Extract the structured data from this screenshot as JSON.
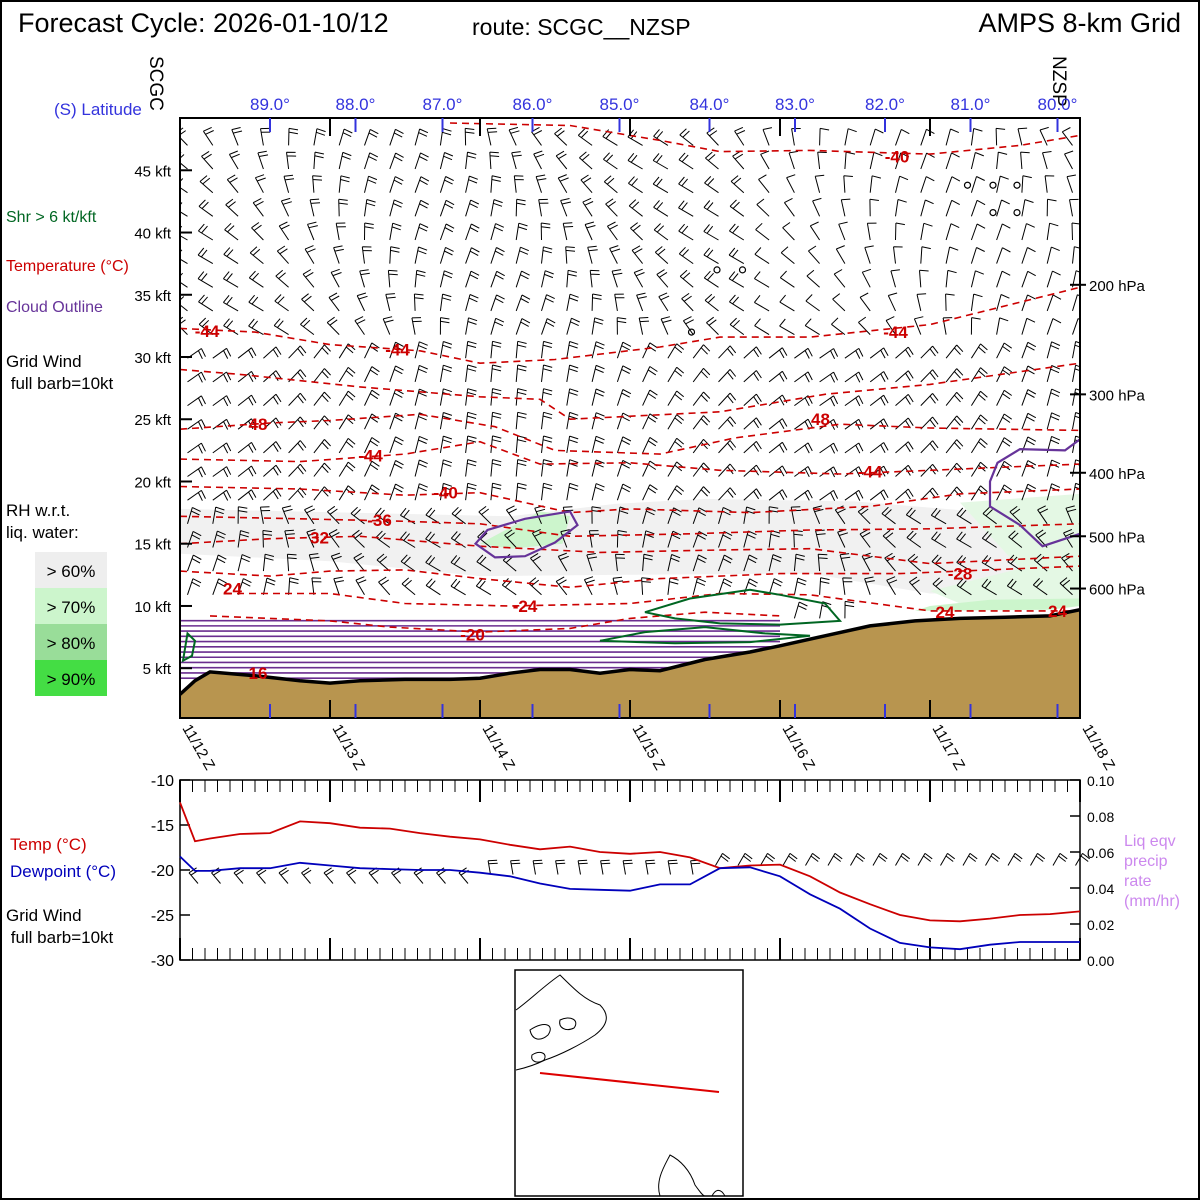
{
  "header": {
    "forecast_cycle": "Forecast Cycle: 2026-01-10/12",
    "route": "route: SCGC__NZSP",
    "grid": "AMPS 8-km Grid"
  },
  "route": {
    "start": "SCGC",
    "end": "NZSP"
  },
  "legend": {
    "shear": "Shr > 6 kt/kft",
    "temperature": "Temperature (°C)",
    "cloud": "Cloud Outline",
    "grid_wind_1": "Grid Wind",
    "grid_wind_2": " full barb=10kt",
    "rh_1": "RH w.r.t.",
    "rh_2": "liq. water:",
    "rh_bins": [
      {
        "label": "> 60%",
        "color": "#eeeeee"
      },
      {
        "label": "> 70%",
        "color": "#ccf5cc"
      },
      {
        "label": "> 80%",
        "color": "#99dd99"
      },
      {
        "label": "> 90%",
        "color": "#44dd44"
      }
    ]
  },
  "colors": {
    "temperature": "#cc0000",
    "cloud": "#663399",
    "shear": "#006622",
    "terrain": "#b8954f",
    "latitude": "#3333dd",
    "dewpoint": "#0000bb",
    "precip": "#cc88ee"
  },
  "chart_data": [
    {
      "type": "cross-section",
      "ylabel_unit": "kft",
      "latitude_label": "(S) Latitude",
      "latitudes": [
        "89.0°",
        "88.0°",
        "87.0°",
        "86.0°",
        "85.0°",
        "84.0°",
        "83.0°",
        "82.0°",
        "81.0°",
        "80.0°"
      ],
      "latitude_values": [
        89.0,
        88.0,
        87.0,
        86.0,
        85.0,
        84.0,
        83.0,
        82.0,
        81.0,
        80.0
      ],
      "latitude_time_positions": [
        0.6,
        1.17,
        1.75,
        2.35,
        2.93,
        3.53,
        4.1,
        4.7,
        5.27,
        5.85
      ],
      "time_labels": [
        "11/12 Z",
        "11/13 Z",
        "11/14 Z",
        "11/15 Z",
        "11/16 Z",
        "11/17 Z",
        "11/18 Z"
      ],
      "y_ticks": [
        {
          "value": 5,
          "label": "5 kft"
        },
        {
          "value": 10,
          "label": "10 kft"
        },
        {
          "value": 15,
          "label": "15 kft"
        },
        {
          "value": 20,
          "label": "20 kft"
        },
        {
          "value": 25,
          "label": "25 kft"
        },
        {
          "value": 30,
          "label": "30 kft"
        },
        {
          "value": 35,
          "label": "35 kft"
        },
        {
          "value": 40,
          "label": "40 kft"
        },
        {
          "value": 45,
          "label": "45 kft"
        }
      ],
      "ylim": [
        1,
        49.2
      ],
      "pressure_levels": [
        {
          "label": "200 hPa",
          "kft": 35.8
        },
        {
          "label": "300 hPa",
          "kft": 27.0
        },
        {
          "label": "400 hPa",
          "kft": 20.7
        },
        {
          "label": "500 hPa",
          "kft": 15.6
        },
        {
          "label": "600 hPa",
          "kft": 11.4
        }
      ],
      "terrain": {
        "t": [
          0,
          0.1,
          0.2,
          0.5,
          0.8,
          1.0,
          1.2,
          1.5,
          1.8,
          2.0,
          2.2,
          2.4,
          2.6,
          2.8,
          3.0,
          3.2,
          3.5,
          3.6,
          3.8,
          4.0,
          4.3,
          4.6,
          4.9,
          5.2,
          5.5,
          5.8,
          6.0
        ],
        "kft": [
          2.9,
          4.0,
          4.7,
          4.4,
          4.0,
          3.8,
          4.0,
          4.1,
          4.1,
          4.2,
          4.6,
          4.9,
          4.9,
          4.6,
          4.9,
          4.8,
          5.7,
          5.9,
          6.3,
          6.8,
          7.6,
          8.4,
          8.8,
          9.0,
          9.1,
          9.2,
          9.7
        ]
      },
      "temperature_labels": [
        {
          "value": "-40",
          "t": 4.78,
          "kft": 46.1
        },
        {
          "value": "-44",
          "t": 0.18,
          "kft": 32.1
        },
        {
          "value": "-44",
          "t": 1.45,
          "kft": 30.6
        },
        {
          "value": "-44",
          "t": 4.77,
          "kft": 32.0
        },
        {
          "value": "48",
          "t": 0.52,
          "kft": 24.6
        },
        {
          "value": "-44",
          "t": 1.27,
          "kft": 22.1
        },
        {
          "value": "48",
          "t": 4.27,
          "kft": 25.0
        },
        {
          "value": "-44",
          "t": 4.6,
          "kft": 20.8
        },
        {
          "value": "-40",
          "t": 1.77,
          "kft": 19.1
        },
        {
          "value": "-36",
          "t": 1.33,
          "kft": 16.9
        },
        {
          "value": "32",
          "t": 0.93,
          "kft": 15.5
        },
        {
          "value": "-28",
          "t": 5.2,
          "kft": 12.6
        },
        {
          "value": "24",
          "t": 0.35,
          "kft": 11.4
        },
        {
          "value": "-24",
          "t": 2.3,
          "kft": 10.0
        },
        {
          "value": "24",
          "t": 5.1,
          "kft": 9.5
        },
        {
          "value": "24",
          "t": 5.85,
          "kft": 9.6
        },
        {
          "value": "-20",
          "t": 1.95,
          "kft": 7.7
        },
        {
          "value": "16",
          "t": 0.52,
          "kft": 4.6
        }
      ]
    },
    {
      "type": "line",
      "ylim": [
        -30,
        -10
      ],
      "y_ticks": [
        -10,
        -15,
        -20,
        -25,
        -30
      ],
      "y2lim": [
        0,
        0.1
      ],
      "y2_ticks": [
        "0.00",
        "0.02",
        "0.04",
        "0.06",
        "0.08",
        "0.10"
      ],
      "series": [
        {
          "name": "Temp (°C)",
          "color": "#cc0000",
          "t": [
            0,
            0.1,
            0.2,
            0.4,
            0.6,
            0.8,
            1.0,
            1.2,
            1.4,
            1.6,
            1.8,
            2.0,
            2.2,
            2.4,
            2.6,
            2.8,
            3.0,
            3.2,
            3.4,
            3.6,
            3.8,
            4.0,
            4.2,
            4.4,
            4.6,
            4.8,
            5.0,
            5.2,
            5.4,
            5.6,
            5.8,
            6.0
          ],
          "values": [
            -12.5,
            -16.8,
            -16.5,
            -16.0,
            -15.9,
            -14.6,
            -14.8,
            -15.3,
            -15.4,
            -15.9,
            -16.3,
            -16.6,
            -17.2,
            -17.7,
            -17.4,
            -18.0,
            -18.2,
            -18.0,
            -18.6,
            -19.8,
            -19.5,
            -19.4,
            -20.7,
            -22.5,
            -23.8,
            -25.0,
            -25.6,
            -25.7,
            -25.4,
            -25.0,
            -24.9,
            -24.6
          ]
        },
        {
          "name": "Dewpoint (°C)",
          "color": "#0000bb",
          "t": [
            0,
            0.1,
            0.2,
            0.4,
            0.6,
            0.8,
            1.0,
            1.2,
            1.4,
            1.6,
            1.8,
            2.0,
            2.2,
            2.4,
            2.6,
            2.8,
            3.0,
            3.2,
            3.4,
            3.6,
            3.8,
            4.0,
            4.2,
            4.4,
            4.6,
            4.8,
            5.0,
            5.2,
            5.4,
            5.6,
            5.8,
            6.0
          ],
          "values": [
            -18.5,
            -20.1,
            -20.1,
            -19.8,
            -19.8,
            -19.2,
            -19.5,
            -19.8,
            -19.9,
            -20.0,
            -20.0,
            -20.3,
            -20.7,
            -21.5,
            -22.1,
            -22.2,
            -22.3,
            -21.6,
            -21.6,
            -19.8,
            -19.7,
            -20.7,
            -22.7,
            -24.3,
            -26.5,
            -28.1,
            -28.6,
            -28.8,
            -28.3,
            -28.0,
            -28.0,
            -28.0
          ]
        }
      ],
      "legend": {
        "temp": "Temp (°C)",
        "dewpoint": "Dewpoint (°C)",
        "wind_1": "Grid Wind",
        "wind_2": " full barb=10kt",
        "precip_1": "Liq eqv",
        "precip_2": "precip",
        "precip_3": "rate",
        "precip_4": "(mm/hr)"
      }
    }
  ]
}
